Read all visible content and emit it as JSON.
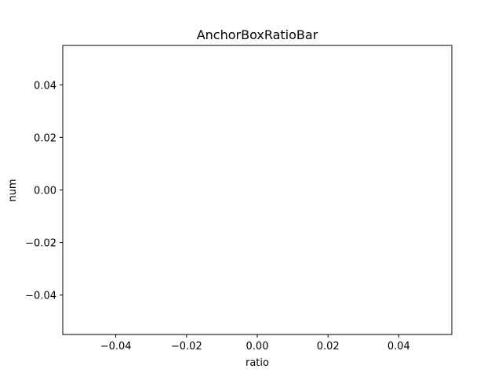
{
  "chart_data": {
    "type": "bar",
    "title": "AnchorBoxRatioBar",
    "xlabel": "ratio",
    "ylabel": "num",
    "categories": [],
    "values": [],
    "xlim": [
      -0.055,
      0.055
    ],
    "ylim": [
      -0.055,
      0.055
    ],
    "xticks": [
      -0.04,
      -0.02,
      0.0,
      0.02,
      0.04
    ],
    "yticks": [
      -0.04,
      -0.02,
      0.0,
      0.02,
      0.04
    ],
    "xtick_labels": [
      "−0.04",
      "−0.02",
      "0.00",
      "0.02",
      "0.04"
    ],
    "ytick_labels": [
      "−0.04",
      "−0.02",
      "0.00",
      "0.02",
      "0.04"
    ],
    "grid": false,
    "legend": "none"
  }
}
